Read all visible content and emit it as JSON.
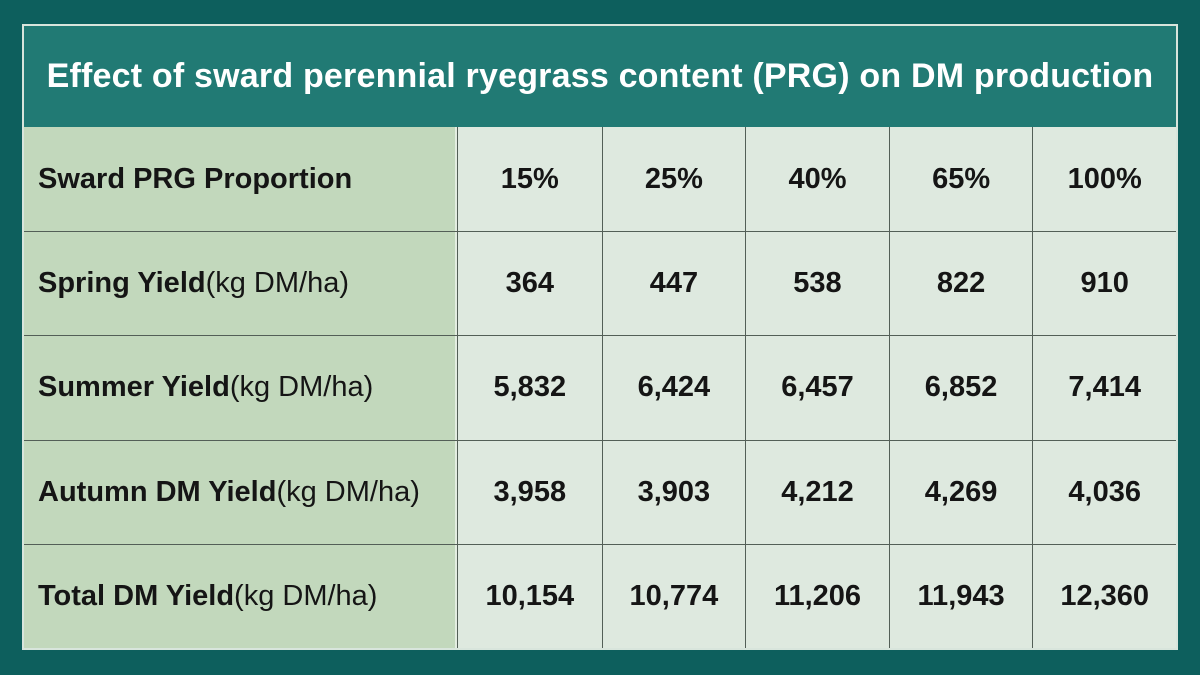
{
  "header": {
    "title": "Effect of sward perennial ryegrass content (PRG) on DM production"
  },
  "colors": {
    "page_background": "#0d5f5d",
    "header_background": "#217a74",
    "header_text": "#ffffff",
    "label_column_background": "#c2d8bc",
    "data_cell_background": "#dee9df",
    "cell_border": "#535f57",
    "outer_border": "#d8e5dc",
    "body_text": "#151515"
  },
  "table": {
    "rows": [
      {
        "label_bold": "Sward PRG Proportion",
        "label_normal": "",
        "values": [
          "15%",
          "25%",
          "40%",
          "65%",
          "100%"
        ]
      },
      {
        "label_bold": "Spring Yield",
        "label_normal": " (kg DM/ha)",
        "values": [
          "364",
          "447",
          "538",
          "822",
          "910"
        ]
      },
      {
        "label_bold": "Summer Yield",
        "label_normal": " (kg DM/ha)",
        "values": [
          "5,832",
          "6,424",
          "6,457",
          "6,852",
          "7,414"
        ]
      },
      {
        "label_bold": "Autumn DM Yield",
        "label_normal": " (kg DM/ha)",
        "values": [
          "3,958",
          "3,903",
          "4,212",
          "4,269",
          "4,036"
        ]
      },
      {
        "label_bold": "Total DM Yield",
        "label_normal": " (kg DM/ha)",
        "values": [
          "10,154",
          "10,774",
          "11,206",
          "11,943",
          "12,360"
        ]
      }
    ]
  },
  "chart_data": {
    "type": "table",
    "title": "Effect of sward perennial ryegrass content (PRG) on DM production",
    "row_header": "Sward PRG Proportion",
    "categories": [
      "15%",
      "25%",
      "40%",
      "65%",
      "100%"
    ],
    "series": [
      {
        "name": "Spring Yield (kg DM/ha)",
        "values": [
          364,
          447,
          538,
          822,
          910
        ]
      },
      {
        "name": "Summer Yield (kg DM/ha)",
        "values": [
          5832,
          6424,
          6457,
          6852,
          7414
        ]
      },
      {
        "name": "Autumn DM Yield (kg DM/ha)",
        "values": [
          3958,
          3903,
          4212,
          4269,
          4036
        ]
      },
      {
        "name": "Total DM Yield (kg DM/ha)",
        "values": [
          10154,
          10774,
          11206,
          11943,
          12360
        ]
      }
    ]
  }
}
